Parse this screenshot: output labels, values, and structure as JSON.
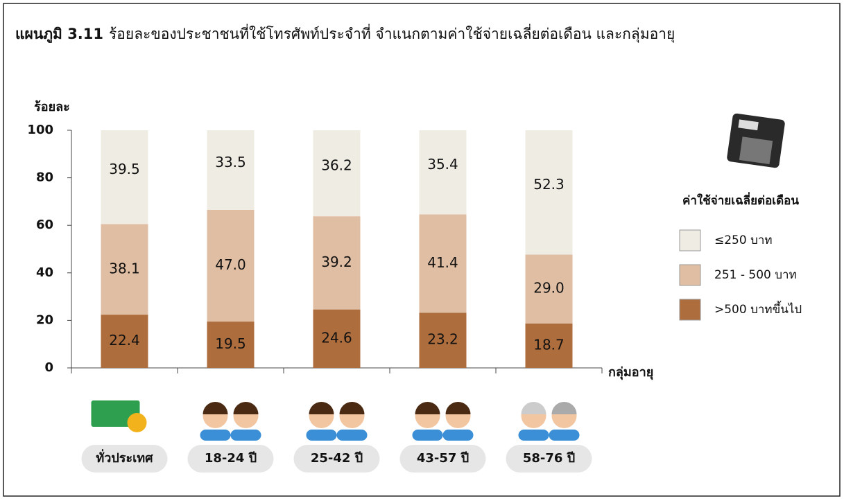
{
  "chart_data": {
    "type": "stacked_bar",
    "title_number": "แผนภูมิ 3.11",
    "title": "ร้อยละของประชาชนที่ใช้โทรศัพท์ประจำที่  จำแนกตามค่าใช้จ่ายเฉลี่ยต่อเดือน  และกลุ่มอายุ",
    "y_label": "ร้อยละ",
    "x_label": "กลุ่มอายุ",
    "legend_title": "ค่าใช้จ่ายเฉลี่ยต่อเดือน",
    "categories": [
      "ทั่วประเทศ",
      "18-24 ปี",
      "25-42 ปี",
      "43-57 ปี",
      "58-76 ปี"
    ],
    "series": [
      {
        "name": "≤250 บาท",
        "color": "#efece3",
        "values": [
          39.5,
          33.5,
          36.2,
          35.4,
          52.3
        ]
      },
      {
        "name": "251 - 500 บาท",
        "color": "#e0bea3",
        "values": [
          38.1,
          47.0,
          39.2,
          41.4,
          29.0
        ],
        "value_labels": [
          "38.1",
          "47.0",
          "39.2",
          "41.4",
          "29.0"
        ]
      },
      {
        "name": ">500 บาทขึ้นไป",
        "color": "#ae6d3c",
        "values": [
          22.4,
          19.5,
          24.6,
          23.2,
          18.7
        ]
      }
    ],
    "ylim": [
      0,
      100
    ],
    "yticks": [
      0,
      20,
      40,
      60,
      80,
      100
    ]
  }
}
